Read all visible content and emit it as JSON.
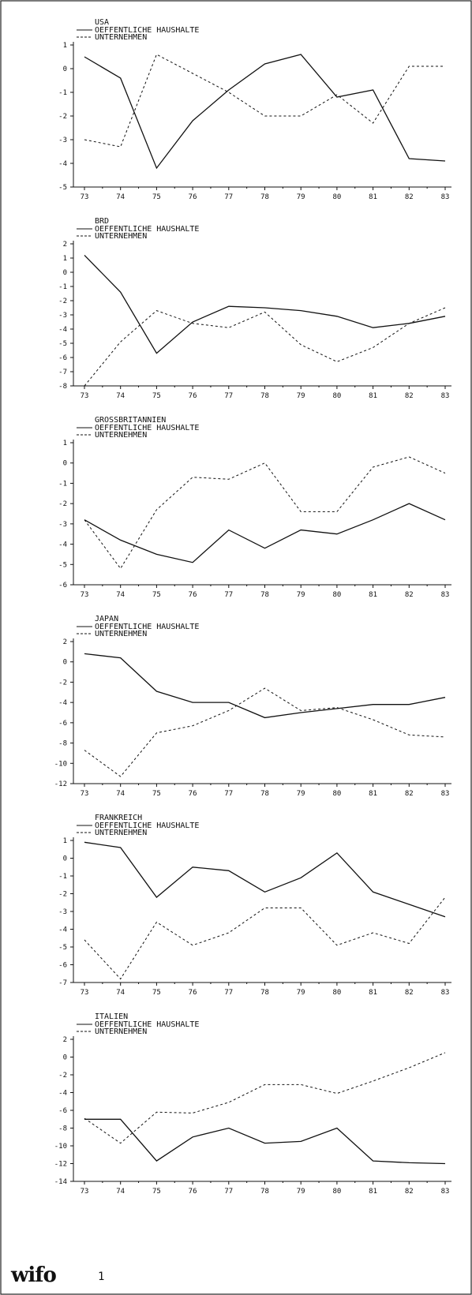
{
  "page": {
    "logo_text": "wifo",
    "page_number": "1"
  },
  "chart_data": [
    {
      "type": "line",
      "title": "USA",
      "x": [
        "73",
        "74",
        "75",
        "76",
        "77",
        "78",
        "79",
        "80",
        "81",
        "82",
        "83"
      ],
      "ylim": [
        -5,
        1
      ],
      "yticks": [
        "1",
        "0",
        "-1",
        "-2",
        "-3",
        "-4",
        "-5"
      ],
      "series": [
        {
          "name": "OEFFENTLICHE HAUSHALTE",
          "style": "solid",
          "values": [
            0.5,
            -0.4,
            -4.2,
            -2.2,
            -0.9,
            0.2,
            0.6,
            -1.2,
            -0.9,
            -3.8,
            -3.9
          ]
        },
        {
          "name": "UNTERNEHMEN",
          "style": "dashed",
          "values": [
            -3.0,
            -3.3,
            0.6,
            -0.2,
            -1.0,
            -2.0,
            -2.0,
            -1.1,
            -2.3,
            0.1,
            0.1
          ]
        }
      ]
    },
    {
      "type": "line",
      "title": "BRD",
      "x": [
        "73",
        "74",
        "75",
        "76",
        "77",
        "78",
        "79",
        "80",
        "81",
        "82",
        "83"
      ],
      "ylim": [
        -8,
        2
      ],
      "yticks": [
        "2",
        "1",
        "0",
        "-1",
        "-2",
        "-3",
        "-4",
        "-5",
        "-6",
        "-7",
        "-8"
      ],
      "series": [
        {
          "name": "OEFFENTLICHE HAUSHALTE",
          "style": "solid",
          "values": [
            1.2,
            -1.4,
            -5.7,
            -3.5,
            -2.4,
            -2.5,
            -2.7,
            -3.1,
            -3.9,
            -3.6,
            -3.1
          ]
        },
        {
          "name": "UNTERNEHMEN",
          "style": "dashed",
          "values": [
            -8.0,
            -4.9,
            -2.7,
            -3.6,
            -3.9,
            -2.8,
            -5.1,
            -6.3,
            -5.3,
            -3.6,
            -2.5
          ]
        }
      ]
    },
    {
      "type": "line",
      "title": "GROSSBRITANNIEN",
      "x": [
        "73",
        "74",
        "75",
        "76",
        "77",
        "78",
        "79",
        "80",
        "81",
        "82",
        "83"
      ],
      "ylim": [
        -6,
        1
      ],
      "yticks": [
        "1",
        "0",
        "-1",
        "-2",
        "-3",
        "-4",
        "-5",
        "-6"
      ],
      "series": [
        {
          "name": "OEFFENTLICHE HAUSHALTE",
          "style": "solid",
          "values": [
            -2.8,
            -3.8,
            -4.5,
            -4.9,
            -3.3,
            -4.2,
            -3.3,
            -3.5,
            -2.8,
            -2.0,
            -2.8
          ]
        },
        {
          "name": "UNTERNEHMEN",
          "style": "dashed",
          "values": [
            -2.8,
            -5.2,
            -2.3,
            -0.7,
            -0.8,
            0.0,
            -2.4,
            -2.4,
            -0.2,
            0.3,
            -0.5
          ]
        }
      ]
    },
    {
      "type": "line",
      "title": "JAPAN",
      "x": [
        "73",
        "74",
        "75",
        "76",
        "77",
        "78",
        "79",
        "80",
        "81",
        "82",
        "83"
      ],
      "ylim": [
        -12,
        2
      ],
      "yticks": [
        "2",
        "0",
        "-2",
        "-4",
        "-6",
        "-8",
        "-10",
        "-12"
      ],
      "series": [
        {
          "name": "OEFFENTLICHE HAUSHALTE",
          "style": "solid",
          "values": [
            0.8,
            0.4,
            -2.9,
            -4.0,
            -4.0,
            -5.5,
            -5.0,
            -4.6,
            -4.2,
            -4.2,
            -3.5
          ]
        },
        {
          "name": "UNTERNEHMEN",
          "style": "dashed",
          "values": [
            -8.7,
            -11.3,
            -7.0,
            -6.3,
            -4.8,
            -2.6,
            -4.8,
            -4.5,
            -5.7,
            -7.2,
            -7.4
          ]
        }
      ]
    },
    {
      "type": "line",
      "title": "FRANKREICH",
      "x": [
        "73",
        "74",
        "75",
        "76",
        "77",
        "78",
        "79",
        "80",
        "81",
        "82",
        "83"
      ],
      "ylim": [
        -7,
        1
      ],
      "yticks": [
        "1",
        "0",
        "-1",
        "-2",
        "-3",
        "-4",
        "-5",
        "-6",
        "-7"
      ],
      "series": [
        {
          "name": "OEFFENTLICHE HAUSHALTE",
          "style": "solid",
          "values": [
            0.9,
            0.6,
            -2.2,
            -0.5,
            -0.7,
            -1.9,
            -1.1,
            0.3,
            -1.9,
            -2.6,
            -3.3
          ]
        },
        {
          "name": "UNTERNEHMEN",
          "style": "dashed",
          "values": [
            -4.6,
            -6.8,
            -3.6,
            -4.9,
            -4.2,
            -2.8,
            -2.8,
            -4.9,
            -4.2,
            -4.8,
            -2.2
          ]
        }
      ]
    },
    {
      "type": "line",
      "title": "ITALIEN",
      "x": [
        "73",
        "74",
        "75",
        "76",
        "77",
        "78",
        "79",
        "80",
        "81",
        "82",
        "83"
      ],
      "ylim": [
        -14,
        2
      ],
      "yticks": [
        "2",
        "0",
        "-2",
        "-4",
        "-6",
        "-8",
        "-10",
        "-12",
        "-14"
      ],
      "series": [
        {
          "name": "OEFFENTLICHE HAUSHALTE",
          "style": "solid",
          "values": [
            -7.0,
            -7.0,
            -11.7,
            -9.0,
            -8.0,
            -9.7,
            -9.5,
            -8.0,
            -11.7,
            -11.9,
            -12.0
          ]
        },
        {
          "name": "UNTERNEHMEN",
          "style": "dashed",
          "values": [
            -6.9,
            -9.7,
            -6.2,
            -6.3,
            -5.1,
            -3.1,
            -3.1,
            -4.1,
            -2.7,
            -1.2,
            0.5
          ]
        }
      ]
    }
  ]
}
